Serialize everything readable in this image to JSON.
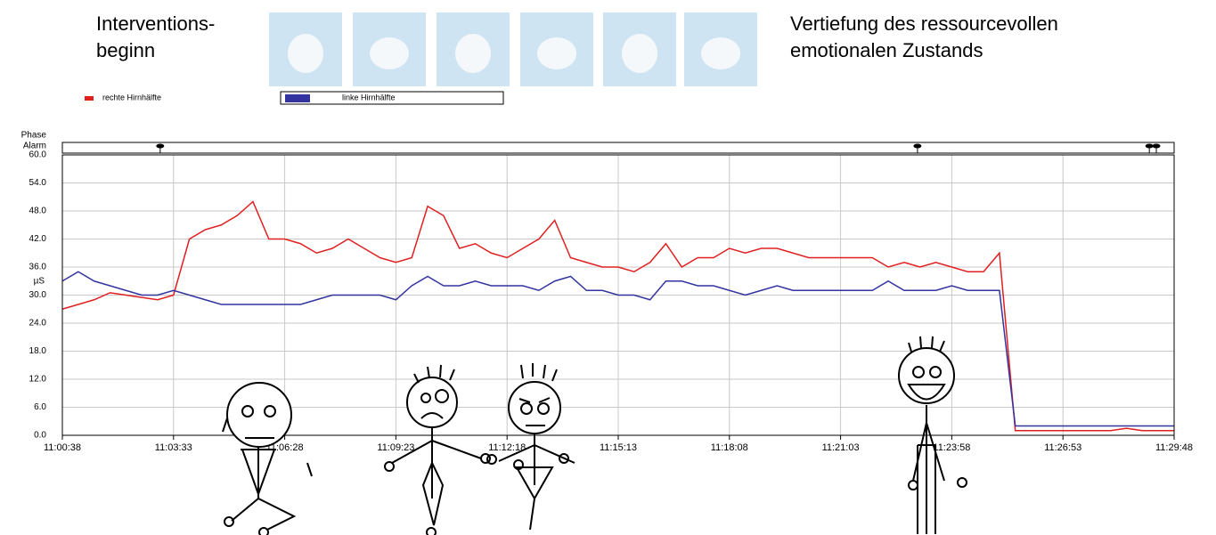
{
  "chart_data": {
    "type": "line",
    "header_left": [
      "Interventions-",
      "beginn"
    ],
    "header_right": [
      "Vertiefung des ressourcevollen",
      "emotionalen Zustands"
    ],
    "strip_labels": [
      "Phase",
      "Alarm"
    ],
    "y_unit": "µS",
    "alarms": [
      39792,
      40984,
      41349,
      41360
    ],
    "x": [
      39638,
      39663,
      39688,
      39713,
      39738,
      39763,
      39788,
      39813,
      39838,
      39863,
      39888,
      39913,
      39938,
      39963,
      39988,
      40013,
      40038,
      40063,
      40088,
      40113,
      40138,
      40163,
      40188,
      40213,
      40238,
      40263,
      40288,
      40313,
      40338,
      40363,
      40388,
      40413,
      40438,
      40463,
      40488,
      40513,
      40538,
      40563,
      40588,
      40613,
      40638,
      40663,
      40688,
      40713,
      40738,
      40763,
      40788,
      40813,
      40838,
      40863,
      40888,
      40913,
      40938,
      40963,
      40988,
      41013,
      41038,
      41063,
      41088,
      41113,
      41138,
      41163,
      41188,
      41213,
      41238,
      41263,
      41288,
      41313,
      41338,
      41363,
      41388
    ],
    "series": [
      {
        "name": "rechte Hirnhälfte",
        "color": "#e02020",
        "values": [
          27,
          28,
          29,
          30.5,
          30,
          29.5,
          29,
          30,
          42,
          44,
          45,
          47,
          50,
          42,
          42,
          41,
          39,
          40,
          42,
          40,
          38,
          37,
          38,
          49,
          47,
          40,
          41,
          39,
          38,
          40,
          42,
          46,
          38,
          37,
          36,
          36,
          35,
          37,
          41,
          36,
          38,
          38,
          40,
          39,
          40,
          40,
          39,
          38,
          38,
          38,
          38,
          38,
          36,
          37,
          36,
          37,
          36,
          35,
          35,
          39,
          1,
          1,
          1,
          1,
          1,
          1,
          1,
          1.5,
          1,
          1,
          1
        ]
      },
      {
        "name": "linke Hirnhälfte",
        "color": "#3333a0",
        "values": [
          33,
          35,
          33,
          32,
          31,
          30,
          30,
          31,
          30,
          29,
          28,
          28,
          28,
          28,
          28,
          28,
          29,
          30,
          30,
          30,
          30,
          29,
          32,
          34,
          32,
          32,
          33,
          32,
          32,
          32,
          31,
          33,
          34,
          31,
          31,
          30,
          30,
          29,
          33,
          33,
          32,
          32,
          31,
          30,
          31,
          32,
          31,
          31,
          31,
          31,
          31,
          31,
          33,
          31,
          31,
          31,
          32,
          31,
          31,
          31,
          2,
          2,
          2,
          2,
          2,
          2,
          2,
          2,
          2,
          2,
          2
        ]
      }
    ],
    "xlim": [
      39638,
      41388
    ],
    "xticks": [
      {
        "value": 39638,
        "label": "11:00:38"
      },
      {
        "value": 39813,
        "label": "11:03:33"
      },
      {
        "value": 39988,
        "label": "11:06:28"
      },
      {
        "value": 40163,
        "label": "11:09:23"
      },
      {
        "value": 40338,
        "label": "11:12:18"
      },
      {
        "value": 40513,
        "label": "11:15:13"
      },
      {
        "value": 40688,
        "label": "11:18:08"
      },
      {
        "value": 40863,
        "label": "11:21:03"
      },
      {
        "value": 41038,
        "label": "11:23:58"
      },
      {
        "value": 41213,
        "label": "11:26:53"
      },
      {
        "value": 41388,
        "label": "11:29:48"
      }
    ],
    "ylim": [
      0,
      60
    ],
    "yticks": [
      {
        "value": 0,
        "label": "0.0"
      },
      {
        "value": 6,
        "label": "6.0"
      },
      {
        "value": 12,
        "label": "12.0"
      },
      {
        "value": 18,
        "label": "18.0"
      },
      {
        "value": 24,
        "label": "24.0"
      },
      {
        "value": 30,
        "label": "30.0"
      },
      {
        "value": 36,
        "label": "36.0"
      },
      {
        "value": 42,
        "label": "42.0"
      },
      {
        "value": 48,
        "label": "48.0"
      },
      {
        "value": 54,
        "label": "54.0"
      },
      {
        "value": 60,
        "label": "60.0"
      }
    ],
    "grid": true
  }
}
